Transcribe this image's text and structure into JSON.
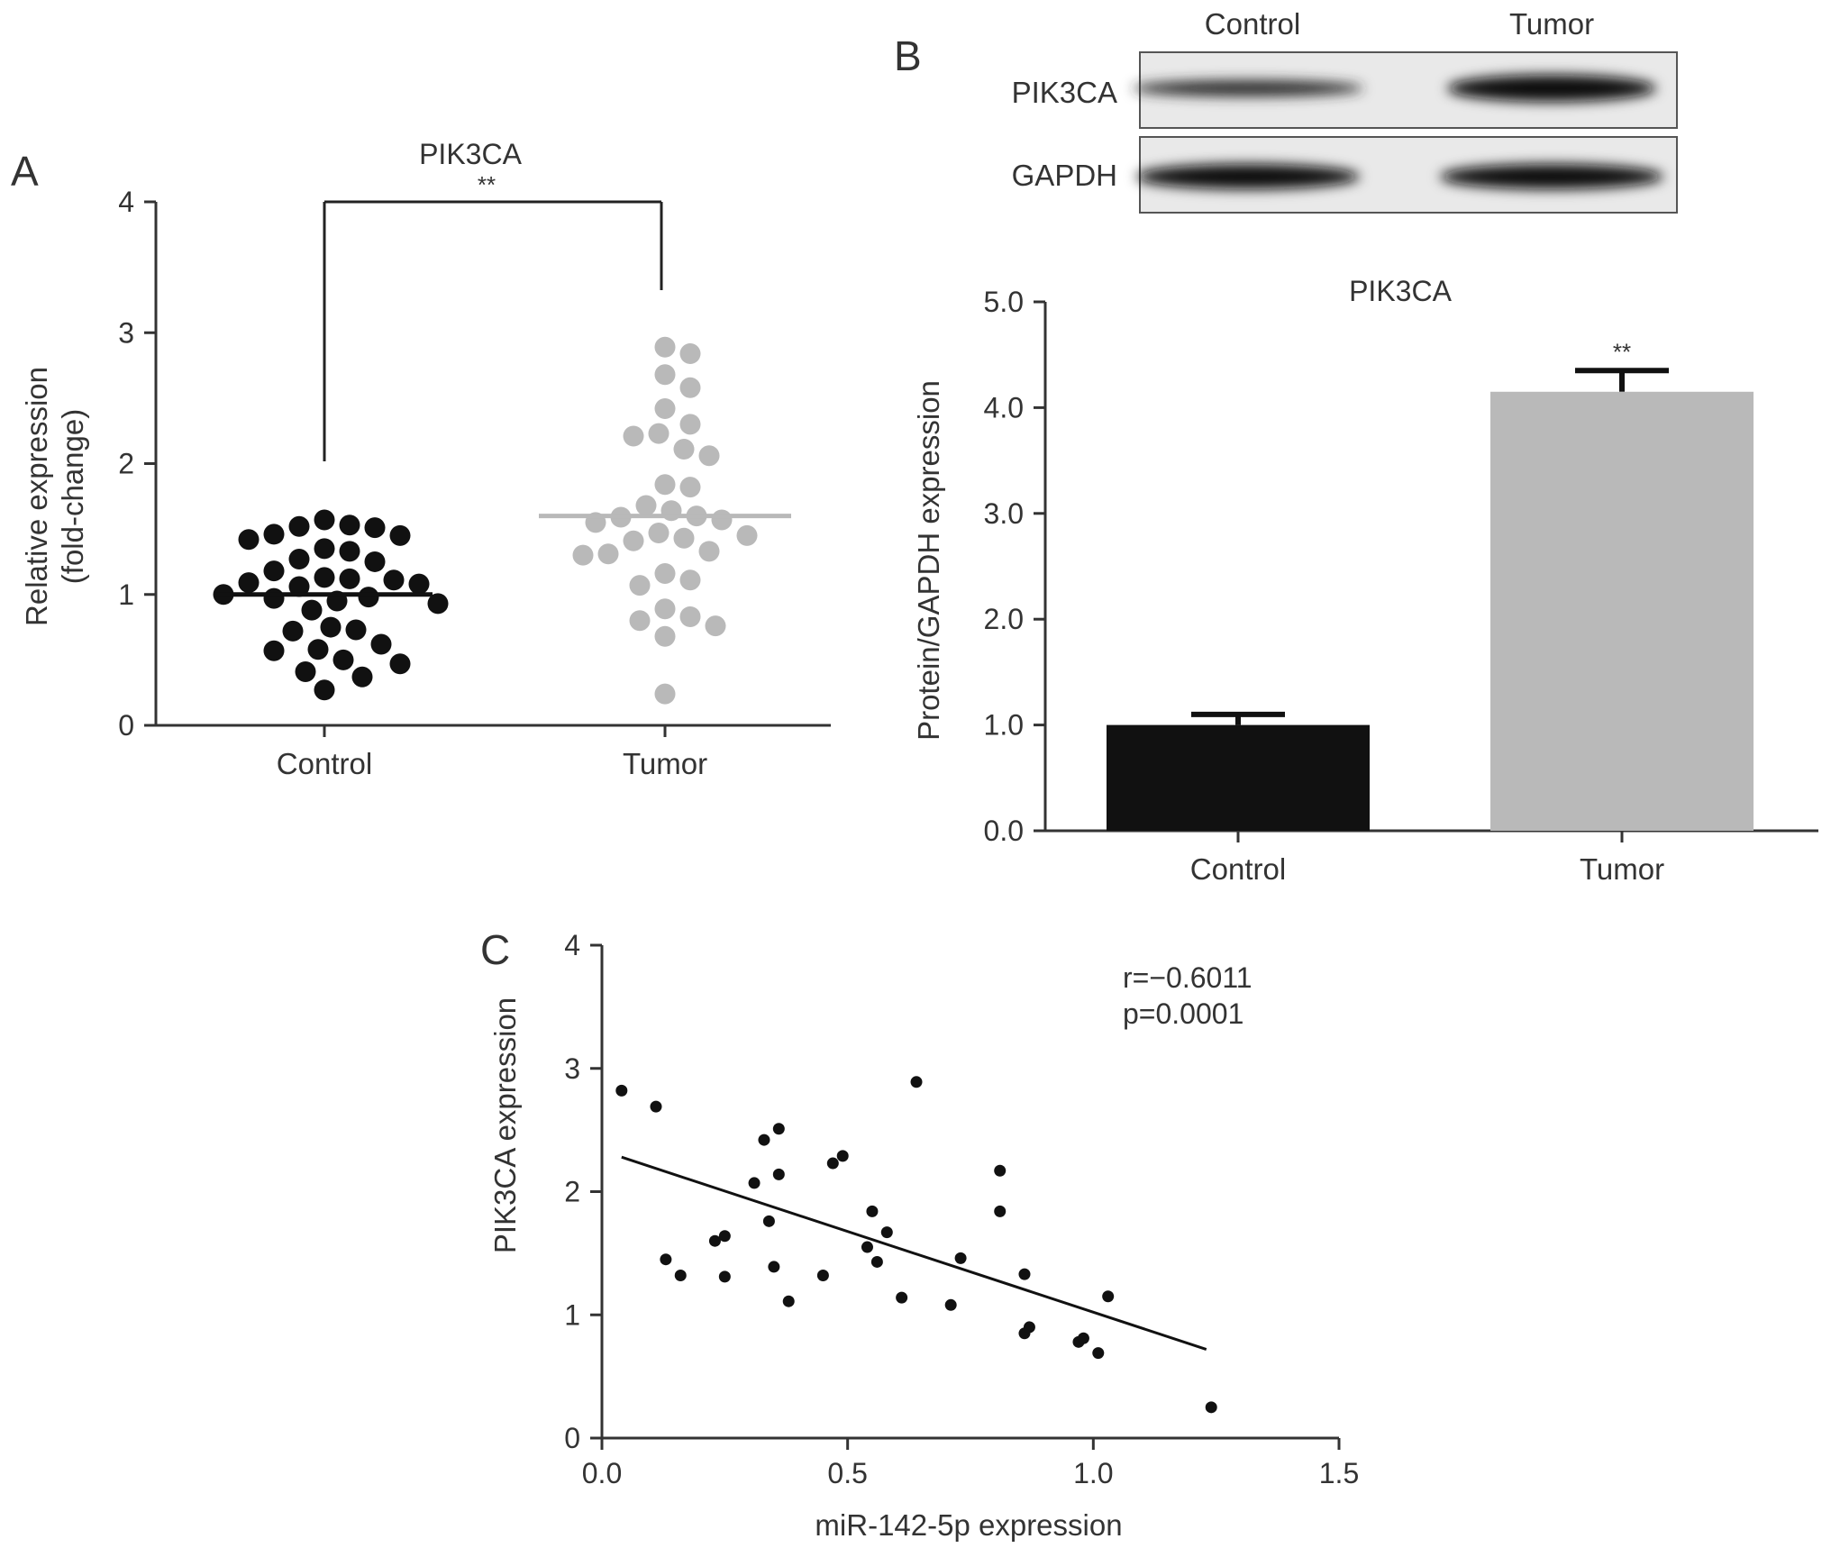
{
  "panels": {
    "A": "A",
    "B": "B",
    "C": "C"
  },
  "colors": {
    "control": "#111111",
    "tumor": "#b9b9b9",
    "axis": "#333333",
    "fit_line": "#111111"
  },
  "blot": {
    "column_labels": [
      "Control",
      "Tumor"
    ],
    "row_labels": [
      "PIK3CA",
      "GAPDH"
    ]
  },
  "chart_data": [
    {
      "id": "A",
      "type": "scatter",
      "title": "PIK3CA",
      "ylabel": "Relative expression\n(fold-change)",
      "categories": [
        "Control",
        "Tumor"
      ],
      "ylim": [
        0,
        4
      ],
      "yticks": [
        0,
        1,
        2,
        3,
        4
      ],
      "significance": "**",
      "series": [
        {
          "category": "Control",
          "mean": 1.0,
          "values": [
            1.57,
            1.53,
            1.52,
            1.51,
            1.46,
            1.45,
            1.42,
            1.35,
            1.33,
            1.27,
            1.25,
            1.18,
            1.13,
            1.12,
            1.11,
            1.09,
            1.08,
            1.06,
            1.0,
            0.98,
            0.97,
            0.95,
            0.93,
            0.88,
            0.75,
            0.73,
            0.72,
            0.62,
            0.58,
            0.57,
            0.5,
            0.47,
            0.41,
            0.37,
            0.27
          ]
        },
        {
          "category": "Tumor",
          "mean": 1.6,
          "values": [
            2.89,
            2.84,
            2.68,
            2.58,
            2.42,
            2.3,
            2.23,
            2.21,
            2.11,
            2.06,
            1.84,
            1.82,
            1.68,
            1.64,
            1.6,
            1.59,
            1.57,
            1.55,
            1.47,
            1.45,
            1.43,
            1.41,
            1.33,
            1.31,
            1.3,
            1.16,
            1.11,
            1.07,
            0.89,
            0.83,
            0.8,
            0.76,
            0.68,
            0.24
          ]
        }
      ]
    },
    {
      "id": "B",
      "type": "bar",
      "title": "PIK3CA",
      "ylabel": "Protein/GAPDH expression",
      "categories": [
        "Control",
        "Tumor"
      ],
      "values": [
        1.0,
        4.15
      ],
      "errors": [
        0.1,
        0.2
      ],
      "ylim": [
        0,
        5
      ],
      "yticks": [
        "0.0",
        "1.0",
        "2.0",
        "3.0",
        "4.0",
        "5.0"
      ],
      "significance": "**"
    },
    {
      "id": "C",
      "type": "scatter",
      "xlabel": "miR-142-5p expression",
      "ylabel": "PIK3CA expression",
      "xlim": [
        0,
        1.5
      ],
      "ylim": [
        0,
        4
      ],
      "xticks": [
        "0.0",
        "0.5",
        "1.0",
        "1.5"
      ],
      "yticks": [
        "0",
        "1",
        "2",
        "3",
        "4"
      ],
      "stats": {
        "r": "r=−0.6011",
        "p": "p=0.0001"
      },
      "fit": {
        "x": [
          0.04,
          1.23
        ],
        "y": [
          2.28,
          0.72
        ]
      },
      "points": [
        [
          0.04,
          2.82
        ],
        [
          0.11,
          2.69
        ],
        [
          0.13,
          1.45
        ],
        [
          0.16,
          1.32
        ],
        [
          0.23,
          1.6
        ],
        [
          0.25,
          1.31
        ],
        [
          0.25,
          1.64
        ],
        [
          0.31,
          2.07
        ],
        [
          0.33,
          2.42
        ],
        [
          0.34,
          1.76
        ],
        [
          0.35,
          1.39
        ],
        [
          0.36,
          2.14
        ],
        [
          0.36,
          2.51
        ],
        [
          0.38,
          1.11
        ],
        [
          0.45,
          1.32
        ],
        [
          0.47,
          2.23
        ],
        [
          0.49,
          2.29
        ],
        [
          0.54,
          1.55
        ],
        [
          0.55,
          1.84
        ],
        [
          0.56,
          1.43
        ],
        [
          0.58,
          1.67
        ],
        [
          0.61,
          1.14
        ],
        [
          0.64,
          2.89
        ],
        [
          0.71,
          1.08
        ],
        [
          0.73,
          1.46
        ],
        [
          0.81,
          2.17
        ],
        [
          0.81,
          1.84
        ],
        [
          0.86,
          1.33
        ],
        [
          0.86,
          0.85
        ],
        [
          0.87,
          0.9
        ],
        [
          0.97,
          0.78
        ],
        [
          0.98,
          0.81
        ],
        [
          1.01,
          0.69
        ],
        [
          1.03,
          1.15
        ],
        [
          1.24,
          0.25
        ]
      ]
    }
  ]
}
